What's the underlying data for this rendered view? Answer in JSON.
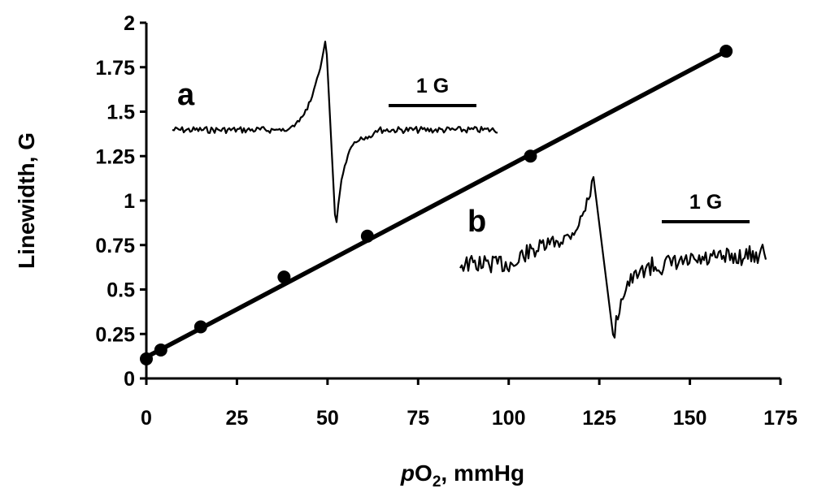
{
  "chart_data": {
    "type": "scatter",
    "xlabel": {
      "italic": "p",
      "base": "O",
      "sub": "2",
      "rest": ", mmHg"
    },
    "ylabel": "Linewidth, G",
    "xlim": [
      0,
      175
    ],
    "ylim": [
      0,
      2
    ],
    "x_ticks": [
      "0",
      "25",
      "50",
      "75",
      "100",
      "125",
      "150",
      "175"
    ],
    "y_ticks": [
      "0",
      "0.25",
      "0.5",
      "0.75",
      "1",
      "1.25",
      "1.5",
      "1.75",
      "2"
    ],
    "grid": false,
    "legend": "none",
    "series": [
      {
        "points": [
          [
            0,
            0.11
          ],
          [
            4,
            0.16
          ],
          [
            15,
            0.29
          ],
          [
            38,
            0.57
          ],
          [
            61,
            0.8
          ],
          [
            106,
            1.25
          ],
          [
            160,
            1.84
          ]
        ]
      }
    ],
    "fit_line": {
      "x": [
        0,
        160
      ],
      "y": [
        0.12,
        1.84
      ]
    },
    "insets": [
      {
        "label": "a",
        "scale_label": "1 G"
      },
      {
        "label": "b",
        "scale_label": "1 G"
      }
    ]
  }
}
